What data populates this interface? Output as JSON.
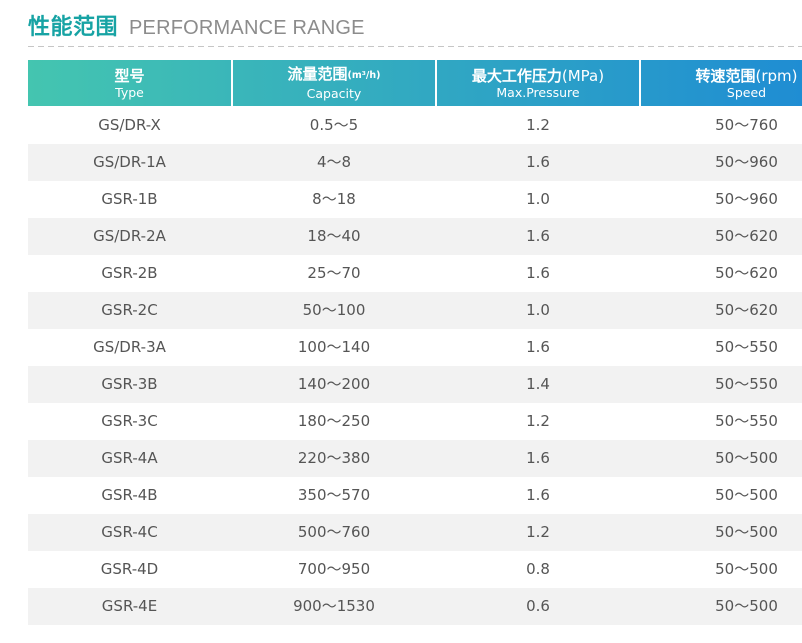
{
  "title": {
    "cn": "性能范围",
    "en": "PERFORMANCE RANGE"
  },
  "colors": {
    "accent": "#17a3a4",
    "header_start": "#44c5b0",
    "header_end": "#1f8dd3",
    "stripe": "#f2f2f2"
  },
  "table": {
    "columns": [
      {
        "label": "型号",
        "sub": "Type"
      },
      {
        "label": "流量范围",
        "unit": "(m³/h)",
        "sub": "Capacity"
      },
      {
        "label": "最大工作压力",
        "unit": "(MPa)",
        "sub": "Max.Pressure"
      },
      {
        "label": "转速范围",
        "unit": "(rpm)",
        "sub": "Speed"
      }
    ],
    "rows": [
      [
        "GS/DR-X",
        "0.5～5",
        "1.2",
        "50～760"
      ],
      [
        "GS/DR-1A",
        "4～8",
        "1.6",
        "50～960"
      ],
      [
        "GSR-1B",
        "8～18",
        "1.0",
        "50～960"
      ],
      [
        "GS/DR-2A",
        "18～40",
        "1.6",
        "50～620"
      ],
      [
        "GSR-2B",
        "25～70",
        "1.6",
        "50～620"
      ],
      [
        "GSR-2C",
        "50～100",
        "1.0",
        "50～620"
      ],
      [
        "GS/DR-3A",
        "100～140",
        "1.6",
        "50～550"
      ],
      [
        "GSR-3B",
        "140～200",
        "1.4",
        "50～550"
      ],
      [
        "GSR-3C",
        "180～250",
        "1.2",
        "50～550"
      ],
      [
        "GSR-4A",
        "220～380",
        "1.6",
        "50～500"
      ],
      [
        "GSR-4B",
        "350～570",
        "1.6",
        "50～500"
      ],
      [
        "GSR-4C",
        "500～760",
        "1.2",
        "50～500"
      ],
      [
        "GSR-4D",
        "700～950",
        "0.8",
        "50～500"
      ],
      [
        "GSR-4E",
        "900～1530",
        "0.6",
        "50～500"
      ]
    ]
  }
}
